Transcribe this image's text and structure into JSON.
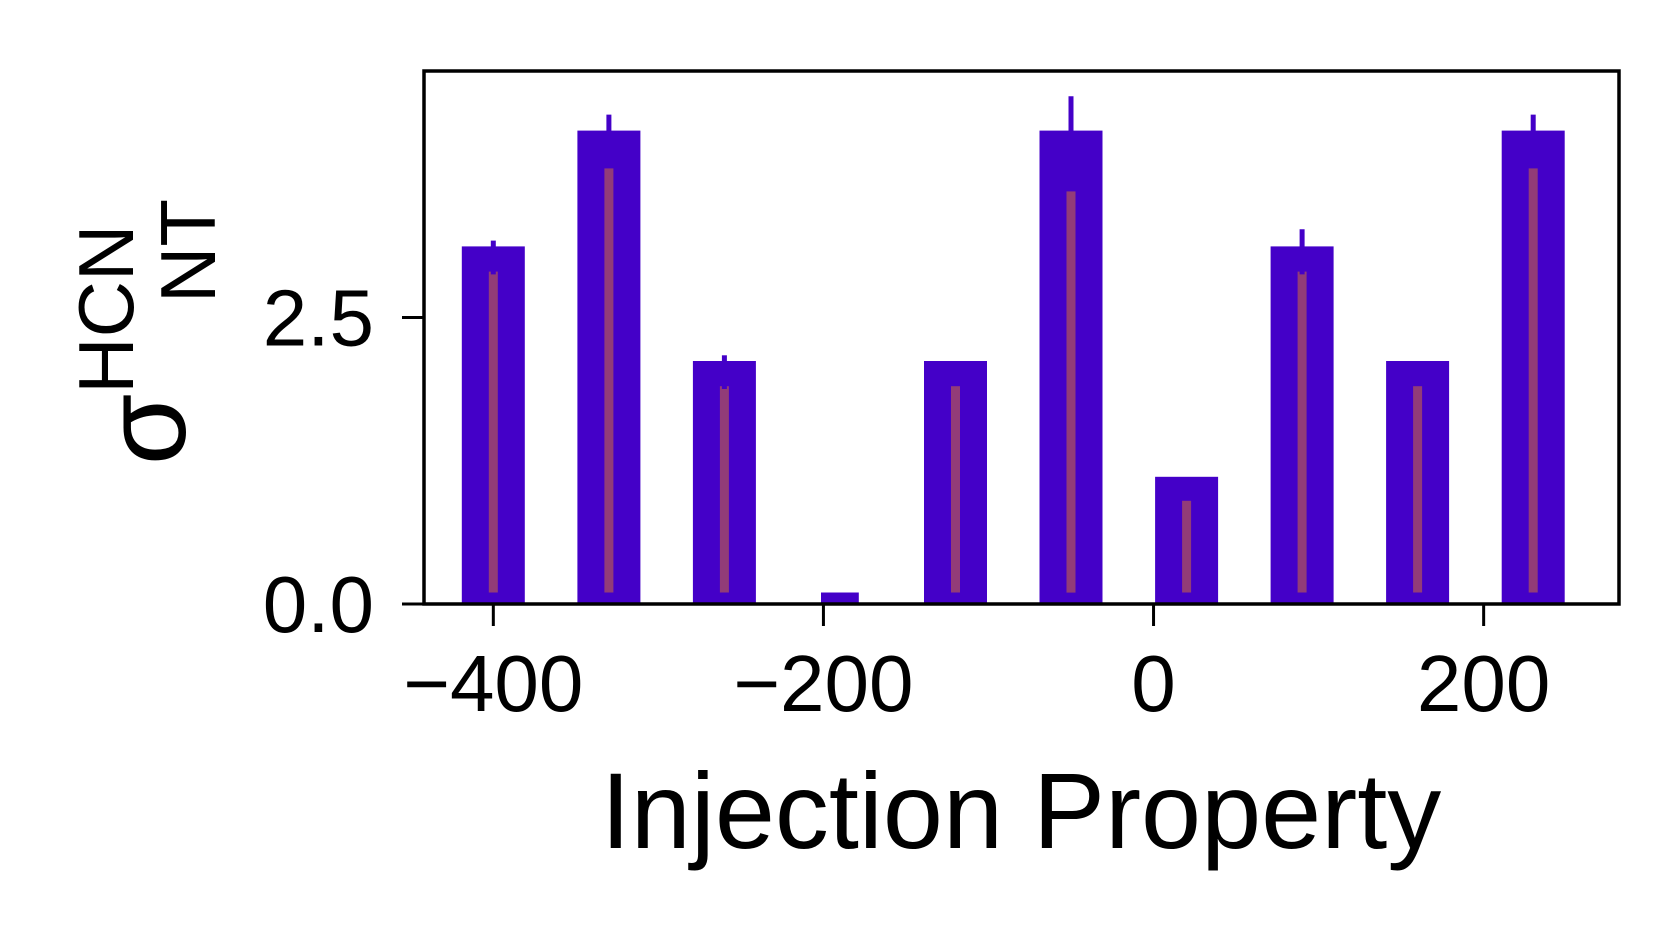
{
  "chart_data": {
    "type": "bar",
    "xlabel": "Injection Property",
    "ylabel": {
      "symbol": "σ",
      "superscript": "HCN",
      "subscript": "NT"
    },
    "xlim": [
      -442,
      282
    ],
    "ylim": [
      0,
      4.65
    ],
    "xticks": [
      -400,
      -200,
      0,
      200
    ],
    "xtick_labels": [
      "−400",
      "−200",
      "0",
      "200"
    ],
    "yticks": [
      0.0,
      2.5
    ],
    "ytick_labels": [
      "0.0",
      "2.5"
    ],
    "grid": false,
    "colors": {
      "bar": "#4400c8",
      "inner_bar": "#923c78",
      "axis": "#000000"
    },
    "series": [
      {
        "x": [
          -400,
          -330,
          -260,
          -190,
          -120,
          -50,
          20,
          90,
          160,
          230
        ],
        "values": [
          3.12,
          4.13,
          2.12,
          0.1,
          2.12,
          4.13,
          1.11,
          3.12,
          2.12,
          4.13
        ],
        "inner_values": [
          2.9,
          3.8,
          1.9,
          0,
          1.9,
          3.6,
          0.9,
          2.9,
          1.9,
          3.8
        ],
        "error_upper": [
          0.05,
          0.14,
          0.05,
          0,
          0,
          0.3,
          0,
          0.15,
          0,
          0.14
        ]
      }
    ]
  }
}
